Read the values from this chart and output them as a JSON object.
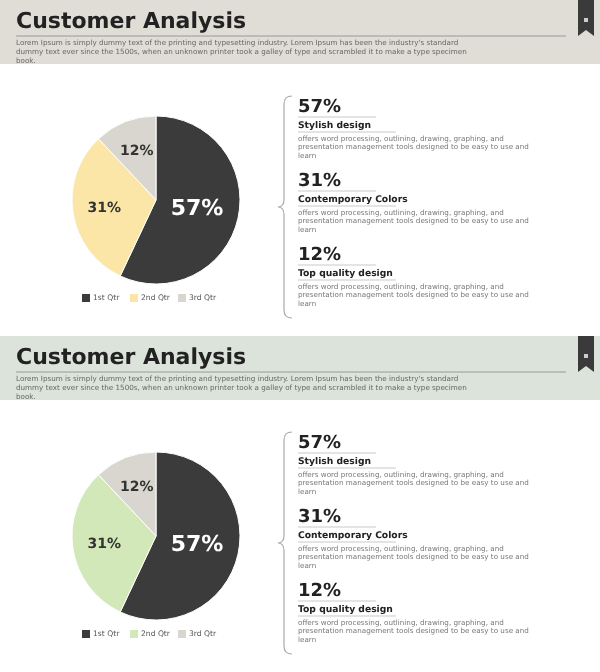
{
  "chart_data": [
    {
      "type": "pie",
      "title": "Customer Analysis",
      "subtitle": "Lorem Ipsum is simply dummy text of the printing and typesetting industry. Lorem Ipsum has been the industry's standard dummy text ever since the 1500s, when an unknown printer took a galley of type and scrambled it to make a type specimen book.",
      "categories": [
        "1st Qtr",
        "2nd Qtr",
        "3rd Qtr"
      ],
      "values": [
        57,
        31,
        12
      ],
      "value_labels": [
        "57%",
        "31%",
        "12%"
      ],
      "colors": [
        "#3b3b3b",
        "#fbe6a8",
        "#d9d6cf"
      ],
      "legend": "bottom"
    },
    {
      "type": "other",
      "annotations": [
        "57%",
        "Stylish design",
        "offers word processing, outlining, drawing, graphing, and presentation management tools designed to be easy to use and learn",
        "31%",
        "Contemporary Colors",
        "offers word processing, outlining, drawing, graphing, and presentation management tools designed to be easy to use and learn",
        "12%",
        "Top quality design",
        "offers word processing, outlining, drawing, graphing, and presentation management tools designed to be easy to use and learn"
      ]
    },
    {
      "type": "pie",
      "title": "Customer Analysis",
      "subtitle": "Lorem Ipsum is simply dummy text of the printing and typesetting industry. Lorem Ipsum has been the industry's standard dummy text ever since the 1500s, when an unknown printer took a galley of type and scrambled it to make a type specimen book.",
      "categories": [
        "1st Qtr",
        "2nd Qtr",
        "3rd Qtr"
      ],
      "values": [
        57,
        31,
        12
      ],
      "value_labels": [
        "57%",
        "31%",
        "12%"
      ],
      "colors": [
        "#3b3b3b",
        "#d2e8b8",
        "#d9d6cf"
      ],
      "legend": "bottom"
    },
    {
      "type": "other",
      "annotations": [
        "57%",
        "Stylish design",
        "offers word processing, outlining, drawing, graphing, and presentation management tools designed to be easy to use and learn",
        "31%",
        "Contemporary Colors",
        "offers word processing, outlining, drawing, graphing, and presentation management tools designed to be easy to use and learn",
        "12%",
        "Top quality design",
        "offers word processing, outlining, drawing, graphing, and presentation management tools designed to be easy to use and learn"
      ]
    }
  ]
}
